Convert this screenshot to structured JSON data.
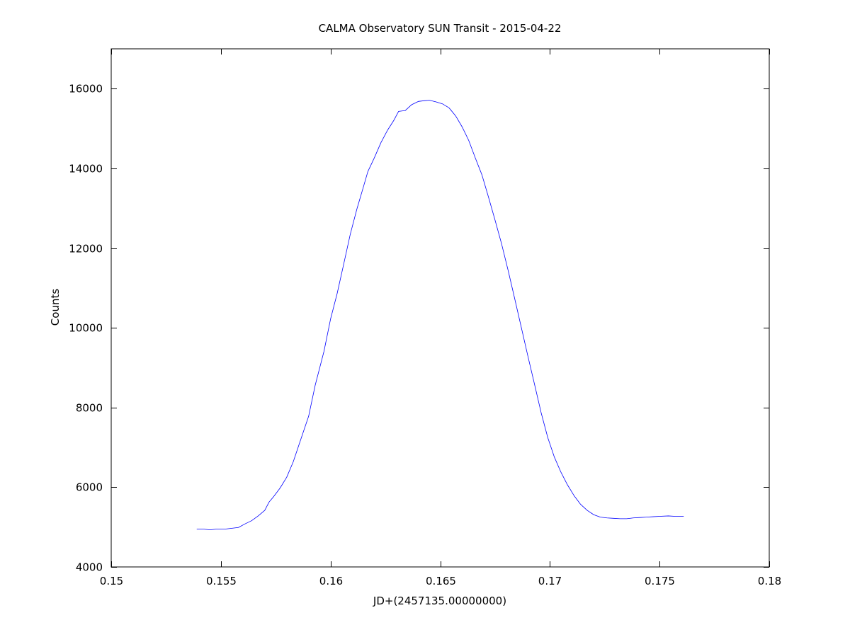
{
  "chart_data": {
    "type": "line",
    "title": "CALMA Observatory SUN Transit - 2015-04-22",
    "xlabel": "JD+(2457135.00000000)",
    "ylabel": "Counts",
    "xlim": [
      0.15,
      0.18
    ],
    "ylim": [
      4000,
      17000
    ],
    "xticks": [
      0.15,
      0.155,
      0.16,
      0.165,
      0.17,
      0.175,
      0.18
    ],
    "xtick_labels": [
      "0.15",
      "0.155",
      "0.16",
      "0.165",
      "0.17",
      "0.175",
      "0.18"
    ],
    "yticks": [
      4000,
      6000,
      8000,
      10000,
      12000,
      14000,
      16000
    ],
    "ytick_labels": [
      "4000",
      "6000",
      "8000",
      "10000",
      "12000",
      "14000",
      "16000"
    ],
    "grid": false,
    "series": [
      {
        "color": "#0000ff",
        "points": [
          [
            0.1539,
            4950
          ],
          [
            0.1542,
            4950
          ],
          [
            0.1545,
            4930
          ],
          [
            0.1548,
            4950
          ],
          [
            0.1552,
            4950
          ],
          [
            0.1555,
            4970
          ],
          [
            0.1558,
            4990
          ],
          [
            0.1561,
            5080
          ],
          [
            0.1564,
            5160
          ],
          [
            0.1567,
            5280
          ],
          [
            0.157,
            5420
          ],
          [
            0.1572,
            5630
          ],
          [
            0.1574,
            5760
          ],
          [
            0.1577,
            5980
          ],
          [
            0.158,
            6250
          ],
          [
            0.1583,
            6640
          ],
          [
            0.1586,
            7130
          ],
          [
            0.159,
            7780
          ],
          [
            0.1593,
            8560
          ],
          [
            0.1597,
            9410
          ],
          [
            0.16,
            10220
          ],
          [
            0.1603,
            10860
          ],
          [
            0.1606,
            11600
          ],
          [
            0.1609,
            12350
          ],
          [
            0.1612,
            12980
          ],
          [
            0.1615,
            13540
          ],
          [
            0.1617,
            13920
          ],
          [
            0.162,
            14270
          ],
          [
            0.1623,
            14650
          ],
          [
            0.1626,
            14960
          ],
          [
            0.1629,
            15220
          ],
          [
            0.1631,
            15430
          ],
          [
            0.1634,
            15450
          ],
          [
            0.1637,
            15600
          ],
          [
            0.164,
            15680
          ],
          [
            0.1643,
            15700
          ],
          [
            0.1645,
            15710
          ],
          [
            0.1648,
            15670
          ],
          [
            0.1651,
            15620
          ],
          [
            0.1654,
            15520
          ],
          [
            0.1657,
            15320
          ],
          [
            0.166,
            15040
          ],
          [
            0.1663,
            14700
          ],
          [
            0.1666,
            14260
          ],
          [
            0.1669,
            13840
          ],
          [
            0.1672,
            13280
          ],
          [
            0.1675,
            12700
          ],
          [
            0.1678,
            12100
          ],
          [
            0.1681,
            11430
          ],
          [
            0.1684,
            10720
          ],
          [
            0.1687,
            10000
          ],
          [
            0.169,
            9280
          ],
          [
            0.1693,
            8580
          ],
          [
            0.1696,
            7870
          ],
          [
            0.1699,
            7250
          ],
          [
            0.1702,
            6760
          ],
          [
            0.1705,
            6380
          ],
          [
            0.1708,
            6060
          ],
          [
            0.1711,
            5790
          ],
          [
            0.1714,
            5570
          ],
          [
            0.1717,
            5420
          ],
          [
            0.172,
            5310
          ],
          [
            0.1723,
            5250
          ],
          [
            0.1726,
            5230
          ],
          [
            0.1729,
            5220
          ],
          [
            0.1732,
            5210
          ],
          [
            0.1735,
            5210
          ],
          [
            0.1738,
            5230
          ],
          [
            0.1741,
            5240
          ],
          [
            0.1744,
            5250
          ],
          [
            0.1747,
            5260
          ],
          [
            0.175,
            5270
          ],
          [
            0.1754,
            5280
          ],
          [
            0.1757,
            5270
          ],
          [
            0.1761,
            5270
          ]
        ]
      }
    ]
  }
}
